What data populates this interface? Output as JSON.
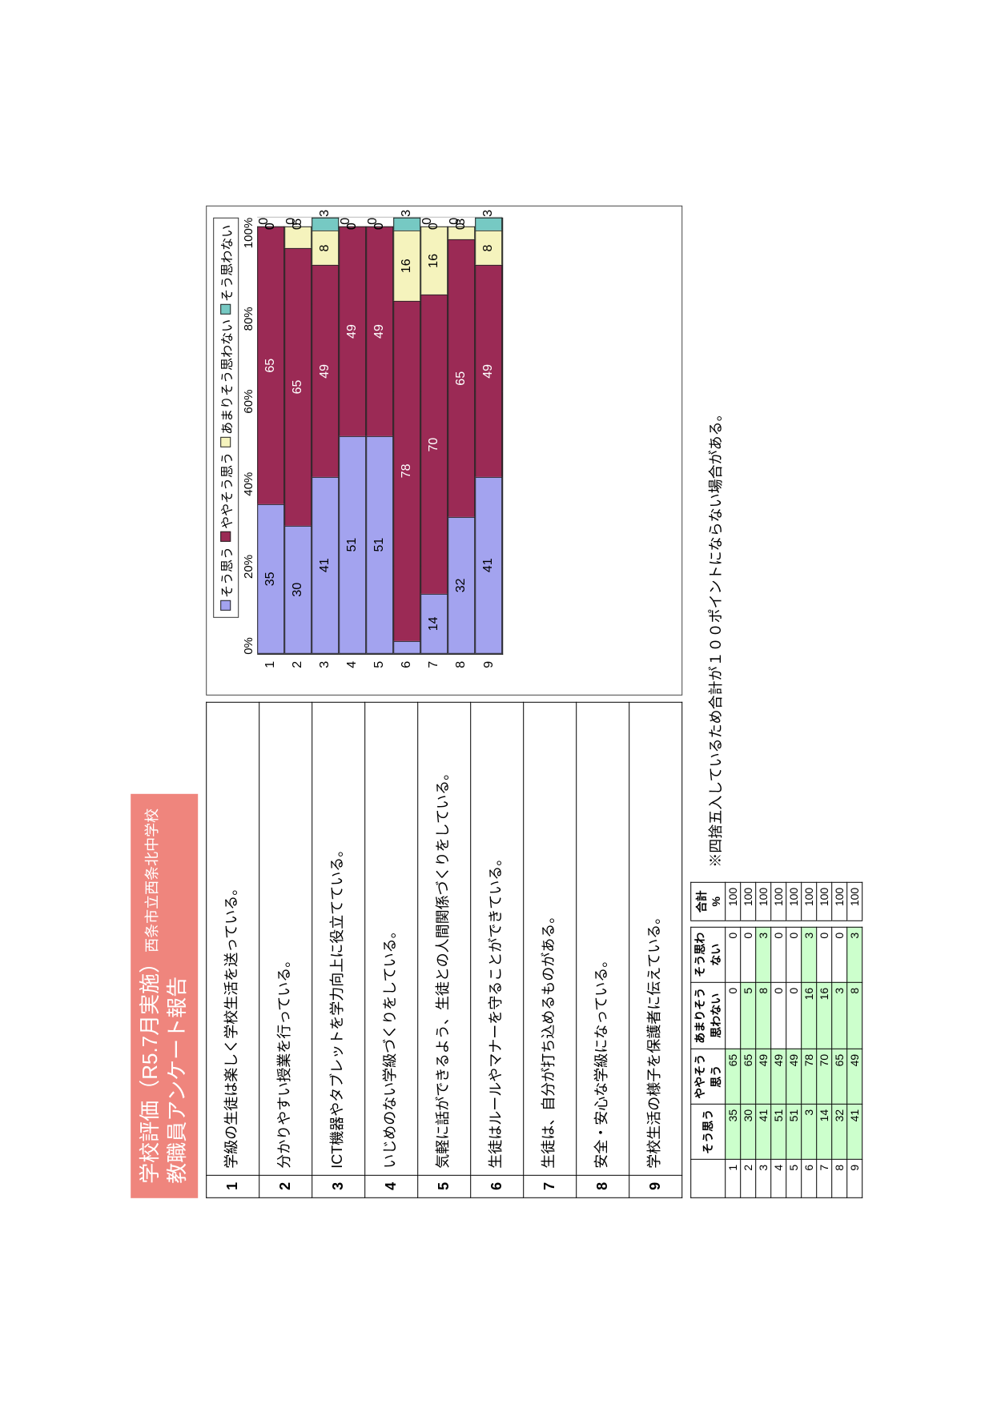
{
  "header": {
    "title_line1": "学校評価（R5.7月実施）",
    "title_sub": "西条市立西条北中学校",
    "title_line2": "教職員アンケート報告"
  },
  "questions": [
    "学級の生徒は楽しく学校生活を送っている。",
    "分かりやすい授業を行っている。",
    "ICT機器やタブレットを学力向上に役立てている。",
    "いじめのない学級づくりをしている。",
    "気軽に話ができるよう、生徒との人間関係づくりをしている。",
    "生徒はルールやマナーを守ることができている。",
    "生徒は、自分が打ち込めるものがある。",
    "安全・安心な学級になっている。",
    "学校生活の様子を保護者に伝えている。"
  ],
  "chart": {
    "legend": [
      "そう思う",
      "ややそう思う",
      "あまりそう思わない",
      "そう思わない"
    ],
    "colors": [
      "#a3a3ef",
      "#9b2a55",
      "#f5f3bd",
      "#76c9c3"
    ],
    "text_colors": [
      "#000000",
      "#ffffff",
      "#000000",
      "#000000"
    ],
    "xticks": [
      "0%",
      "20%",
      "40%",
      "60%",
      "80%",
      "100%"
    ],
    "xtick_pos": [
      0,
      20,
      40,
      60,
      80,
      100
    ],
    "rows": [
      "1",
      "2",
      "3",
      "4",
      "5",
      "6",
      "7",
      "8",
      "9"
    ],
    "data": [
      [
        35,
        65,
        0,
        0
      ],
      [
        30,
        65,
        5,
        0
      ],
      [
        41,
        49,
        8,
        3
      ],
      [
        51,
        49,
        0,
        0
      ],
      [
        51,
        49,
        0,
        0
      ],
      [
        3,
        78,
        16,
        3
      ],
      [
        14,
        70,
        16,
        0
      ],
      [
        32,
        65,
        3,
        0
      ],
      [
        41,
        49,
        8,
        3
      ]
    ]
  },
  "table": {
    "headers": [
      "そう思う",
      "ややそう\n思う",
      "あまりそう\n思わない",
      "そう思わ\nない",
      "合計\n%"
    ],
    "rows": [
      {
        "n": 1,
        "v": [
          35,
          65,
          0,
          0
        ],
        "t": 100
      },
      {
        "n": 2,
        "v": [
          30,
          65,
          5,
          0
        ],
        "t": 100
      },
      {
        "n": 3,
        "v": [
          41,
          49,
          8,
          3
        ],
        "t": 100
      },
      {
        "n": 4,
        "v": [
          51,
          49,
          0,
          0
        ],
        "t": 100
      },
      {
        "n": 5,
        "v": [
          51,
          49,
          0,
          0
        ],
        "t": 100
      },
      {
        "n": 6,
        "v": [
          3,
          78,
          16,
          3
        ],
        "t": 100
      },
      {
        "n": 7,
        "v": [
          14,
          70,
          16,
          0
        ],
        "t": 100
      },
      {
        "n": 8,
        "v": [
          32,
          65,
          3,
          0
        ],
        "t": 100
      },
      {
        "n": 9,
        "v": [
          41,
          49,
          8,
          3
        ],
        "t": 100
      }
    ],
    "highlight_threshold": 5
  },
  "footnote": "※四捨五入しているため合計が１００ポイントにならない場合がある。"
}
